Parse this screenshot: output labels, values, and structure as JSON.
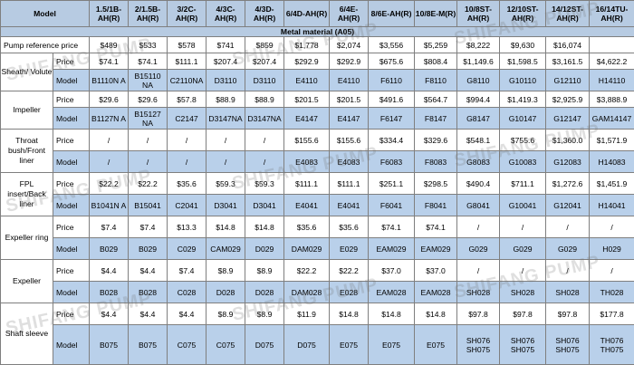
{
  "header": {
    "model_label": "Model",
    "columns": [
      "1.5/1B-AH(R)",
      "2/1.5B-AH(R)",
      "3/2C-AH(R)",
      "4/3C-AH(R)",
      "4/3D-AH(R)",
      "6/4D-AH(R)",
      "6/4E-AH(R)",
      "8/6E-AH(R)",
      "10/8E-M(R)",
      "10/8ST-AH(R)",
      "12/10ST-AH(R)",
      "14/12ST-AH(R)",
      "16/14TU-AH(R)"
    ]
  },
  "material_label": "Metal material (A05)",
  "pump_price": {
    "label": "Pump reference price",
    "values": [
      "$489",
      "$533",
      "$578",
      "$741",
      "$859",
      "$1,778",
      "$2,074",
      "$3,556",
      "$5,259",
      "$8,222",
      "$9,630",
      "$16,074",
      ""
    ]
  },
  "sections": [
    {
      "name": "Sheath/ Volute",
      "price_label": "Price",
      "prices": [
        "$74.1",
        "$74.1",
        "$111.1",
        "$207.4",
        "$207.4",
        "$292.9",
        "$292.9",
        "$675.6",
        "$808.4",
        "$1,149.6",
        "$1,598.5",
        "$3,161.5",
        "$4,622.2"
      ],
      "model_label": "Model",
      "models": [
        "B1110N A",
        "B15110 NA",
        "C2110NA",
        "D3110",
        "D3110",
        "E4110",
        "E4110",
        "F6110",
        "F8110",
        "G8110",
        "G10110",
        "G12110",
        "H14110"
      ]
    },
    {
      "name": "Impeller",
      "price_label": "Price",
      "prices": [
        "$29.6",
        "$29.6",
        "$57.8",
        "$88.9",
        "$88.9",
        "$201.5",
        "$201.5",
        "$491.6",
        "$564.7",
        "$994.4",
        "$1,419.3",
        "$2,925.9",
        "$3,888.9"
      ],
      "model_label": "Model",
      "models": [
        "B1127N A",
        "B15127 NA",
        "C2147",
        "D3147NA",
        "D3147NA",
        "E4147",
        "E4147",
        "F6147",
        "F8147",
        "G8147",
        "G10147",
        "G12147",
        "GAM14147"
      ]
    },
    {
      "name": "Throat bush/Front liner",
      "price_label": "Price",
      "prices": [
        "/",
        "/",
        "/",
        "/",
        "/",
        "$155.6",
        "$155.6",
        "$334.4",
        "$329.6",
        "$548.1",
        "$755.6",
        "$1,360.0",
        "$1,571.9"
      ],
      "model_label": "Model",
      "models": [
        "/",
        "/",
        "/",
        "/",
        "/",
        "E4083",
        "E4083",
        "F6083",
        "F8083",
        "G8083",
        "G10083",
        "G12083",
        "H14083"
      ]
    },
    {
      "name": "FPL insert/Back liner",
      "price_label": "Price",
      "prices": [
        "$22.2",
        "$22.2",
        "$35.6",
        "$59.3",
        "$59.3",
        "$111.1",
        "$111.1",
        "$251.1",
        "$298.5",
        "$490.4",
        "$711.1",
        "$1,272.6",
        "$1,451.9"
      ],
      "model_label": "Model",
      "models": [
        "B1041N A",
        "B15041",
        "C2041",
        "D3041",
        "D3041",
        "E4041",
        "E4041",
        "F6041",
        "F8041",
        "G8041",
        "G10041",
        "G12041",
        "H14041"
      ]
    },
    {
      "name": "Expeller ring",
      "price_label": "Price",
      "prices": [
        "$7.4",
        "$7.4",
        "$13.3",
        "$14.8",
        "$14.8",
        "$35.6",
        "$35.6",
        "$74.1",
        "$74.1",
        "/",
        "/",
        "/",
        "/"
      ],
      "model_label": "Model",
      "models": [
        "B029",
        "B029",
        "C029",
        "CAM029",
        "D029",
        "DAM029",
        "E029",
        "EAM029",
        "EAM029",
        "G029",
        "G029",
        "G029",
        "H029"
      ]
    },
    {
      "name": "Expeller",
      "price_label": "Price",
      "prices": [
        "$4.4",
        "$4.4",
        "$7.4",
        "$8.9",
        "$8.9",
        "$22.2",
        "$22.2",
        "$37.0",
        "$37.0",
        "/",
        "/",
        "/",
        "/"
      ],
      "model_label": "Model",
      "models": [
        "B028",
        "B028",
        "C028",
        "D028",
        "D028",
        "DAM028",
        "E028",
        "EAM028",
        "EAM028",
        "SH028",
        "SH028",
        "SH028",
        "TH028"
      ]
    },
    {
      "name": "Shaft sleeve",
      "price_label": "Price",
      "prices": [
        "$4.4",
        "$4.4",
        "$4.4",
        "$8.9",
        "$8.9",
        "$11.9",
        "$14.8",
        "$14.8",
        "$14.8",
        "$97.8",
        "$97.8",
        "$97.8",
        "$177.8"
      ],
      "model_label": "Model",
      "models": [
        "B075",
        "B075",
        "C075",
        "C075",
        "D075",
        "D075",
        "E075",
        "E075",
        "E075",
        "SH076 SH075",
        "SH076 SH075",
        "SH076 SH075",
        "TH076 TH075"
      ]
    }
  ],
  "watermark": "SHIFANG PUMP"
}
